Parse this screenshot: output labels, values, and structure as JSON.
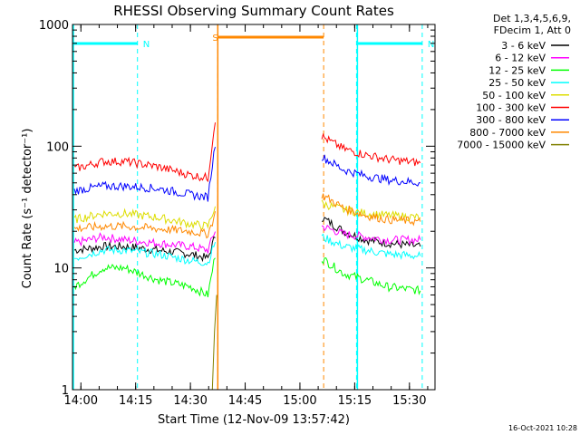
{
  "chart_data": {
    "type": "line",
    "title": "RHESSI Observing Summary Count Rates",
    "xlabel": "Start Time (12-Nov-09 13:57:42)",
    "ylabel": "Count Rate (s⁻¹ detector⁻¹)",
    "y_scale": "log",
    "ylim": [
      1,
      1000
    ],
    "xlim": [
      "13:57:42",
      "15:37:00"
    ],
    "x_ticks": [
      "14:00",
      "14:15",
      "14:30",
      "14:45",
      "15:00",
      "15:15",
      "15:30"
    ],
    "y_ticks": [
      "1",
      "10",
      "100",
      "1000"
    ],
    "legend_header": [
      "Det 1,3,4,5,6,9,",
      "FDecim 1, Att 0"
    ],
    "legend_position": "right",
    "timestamp": "16-Oct-2021 10:28",
    "series": [
      {
        "name": "3 - 6 keV",
        "color": "#000000",
        "values": [
          [
            13.97,
            14
          ],
          [
            14.1,
            15
          ],
          [
            14.2,
            15
          ],
          [
            14.35,
            14
          ],
          [
            14.5,
            13
          ],
          [
            14.58,
            12
          ],
          [
            14.62,
            20
          ],
          [
            15.1,
            26
          ],
          [
            15.2,
            20
          ],
          [
            15.3,
            17
          ],
          [
            15.4,
            16
          ],
          [
            15.55,
            15
          ]
        ]
      },
      {
        "name": "6 - 12 keV",
        "color": "#ff00ff",
        "values": [
          [
            13.97,
            16
          ],
          [
            14.1,
            18
          ],
          [
            14.2,
            17
          ],
          [
            14.35,
            16
          ],
          [
            14.5,
            15
          ],
          [
            14.58,
            14
          ],
          [
            14.62,
            22
          ],
          [
            15.1,
            22
          ],
          [
            15.2,
            19
          ],
          [
            15.3,
            18
          ],
          [
            15.4,
            17
          ],
          [
            15.55,
            17
          ]
        ]
      },
      {
        "name": "12 - 25 keV",
        "color": "#00ff00",
        "values": [
          [
            13.97,
            7
          ],
          [
            14.1,
            10
          ],
          [
            14.2,
            10
          ],
          [
            14.35,
            8
          ],
          [
            14.5,
            7
          ],
          [
            14.58,
            6
          ],
          [
            14.62,
            15
          ],
          [
            15.1,
            12
          ],
          [
            15.2,
            9
          ],
          [
            15.3,
            8
          ],
          [
            15.4,
            7
          ],
          [
            15.55,
            6.5
          ]
        ]
      },
      {
        "name": "25 - 50 keV",
        "color": "#00ffff",
        "values": [
          [
            13.97,
            12
          ],
          [
            14.1,
            14
          ],
          [
            14.2,
            14
          ],
          [
            14.35,
            13
          ],
          [
            14.5,
            11.5
          ],
          [
            14.58,
            11
          ],
          [
            14.62,
            18
          ],
          [
            15.1,
            18
          ],
          [
            15.2,
            15
          ],
          [
            15.3,
            14
          ],
          [
            15.4,
            13
          ],
          [
            15.55,
            12.5
          ]
        ]
      },
      {
        "name": "50 - 100 keV",
        "color": "#dddd00",
        "values": [
          [
            13.97,
            25
          ],
          [
            14.1,
            28
          ],
          [
            14.2,
            28
          ],
          [
            14.35,
            26
          ],
          [
            14.5,
            23
          ],
          [
            14.58,
            22
          ],
          [
            14.62,
            35
          ],
          [
            15.1,
            34
          ],
          [
            15.2,
            30
          ],
          [
            15.3,
            28
          ],
          [
            15.4,
            27
          ],
          [
            15.55,
            26
          ]
        ]
      },
      {
        "name": "100 - 300 keV",
        "color": "#ff0000",
        "values": [
          [
            13.97,
            65
          ],
          [
            14.1,
            75
          ],
          [
            14.2,
            75
          ],
          [
            14.35,
            68
          ],
          [
            14.5,
            58
          ],
          [
            14.58,
            55
          ],
          [
            14.62,
            210
          ],
          [
            15.1,
            120
          ],
          [
            15.2,
            95
          ],
          [
            15.3,
            85
          ],
          [
            15.4,
            78
          ],
          [
            15.55,
            73
          ]
        ]
      },
      {
        "name": "300 - 800 keV",
        "color": "#0000ff",
        "values": [
          [
            13.97,
            43
          ],
          [
            14.1,
            47
          ],
          [
            14.2,
            47
          ],
          [
            14.35,
            45
          ],
          [
            14.5,
            40
          ],
          [
            14.58,
            38
          ],
          [
            14.62,
            130
          ],
          [
            15.1,
            82
          ],
          [
            15.2,
            64
          ],
          [
            15.3,
            57
          ],
          [
            15.4,
            53
          ],
          [
            15.55,
            50
          ]
        ]
      },
      {
        "name": "800 - 7000 keV",
        "color": "#ff8800",
        "values": [
          [
            13.97,
            21
          ],
          [
            14.1,
            22
          ],
          [
            14.2,
            22
          ],
          [
            14.35,
            21
          ],
          [
            14.5,
            20
          ],
          [
            14.58,
            19
          ],
          [
            14.62,
            30
          ],
          [
            15.1,
            40
          ],
          [
            15.2,
            31
          ],
          [
            15.3,
            27
          ],
          [
            15.4,
            25
          ],
          [
            15.55,
            24
          ]
        ]
      },
      {
        "name": "7000 - 15000 keV",
        "color": "#808000",
        "values": [
          [
            14.6,
            1
          ],
          [
            14.61,
            3
          ],
          [
            14.62,
            6
          ]
        ]
      }
    ],
    "annotations": [
      {
        "label": "N",
        "color": "#00ffff",
        "type": "night",
        "start": "13:57:42",
        "end": "14:15:30"
      },
      {
        "label": "N",
        "color": "#00ffff",
        "type": "night",
        "start": "15:15:30",
        "end": "15:33:30"
      },
      {
        "label": "S",
        "color": "#ff8800",
        "type": "saa",
        "start": "14:37:30",
        "end": "15:06:30"
      }
    ],
    "grid": false
  }
}
